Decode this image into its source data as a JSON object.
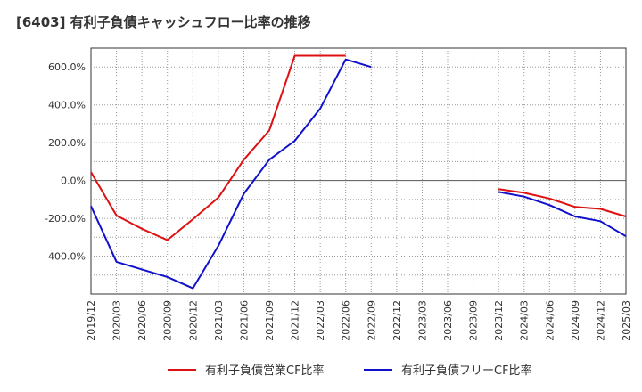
{
  "chart_data": {
    "type": "line",
    "title": "[6403]  有利子負債キャッシュフロー比率の推移",
    "xlabel": "",
    "ylabel": "",
    "ylim": [
      -600,
      700
    ],
    "y_ticks": [
      {
        "value": 600,
        "label": "600.0%"
      },
      {
        "value": 400,
        "label": "400.0%"
      },
      {
        "value": 200,
        "label": "200.0%"
      },
      {
        "value": 0,
        "label": "0.0%"
      },
      {
        "value": -200,
        "label": "-200.0%"
      },
      {
        "value": -400,
        "label": "-400.0%"
      }
    ],
    "categories": [
      "2019/12",
      "2020/03",
      "2020/06",
      "2020/09",
      "2020/12",
      "2021/03",
      "2021/06",
      "2021/09",
      "2021/12",
      "2022/03",
      "2022/06",
      "2022/09",
      "2022/12",
      "2023/03",
      "2023/06",
      "2023/09",
      "2023/12",
      "2024/03",
      "2024/06",
      "2024/09",
      "2024/12",
      "2025/03"
    ],
    "grid": true,
    "legend_position": "bottom",
    "series": [
      {
        "name": "有利子負債営業CF比率",
        "color": "#dd1111",
        "segments": [
          [
            [
              0,
              45
            ],
            [
              3,
              -185
            ],
            [
              6,
              -255
            ],
            [
              9,
              -315
            ],
            [
              12,
              -205
            ],
            [
              15,
              -90
            ],
            [
              18,
              110
            ],
            [
              21,
              265
            ],
            [
              24,
              660
            ],
            [
              27,
              660
            ],
            [
              30,
              660
            ]
          ],
          [
            [
              48,
              -45
            ],
            [
              51,
              -65
            ],
            [
              54,
              -95
            ],
            [
              57,
              -140
            ],
            [
              60,
              -150
            ],
            [
              63,
              -190
            ]
          ]
        ]
      },
      {
        "name": "有利子負債フリーCF比率",
        "color": "#1111cc",
        "segments": [
          [
            [
              0,
              -135
            ],
            [
              3,
              -430
            ],
            [
              6,
              -470
            ],
            [
              9,
              -510
            ],
            [
              12,
              -570
            ],
            [
              15,
              -345
            ],
            [
              18,
              -70
            ],
            [
              21,
              110
            ],
            [
              24,
              210
            ],
            [
              27,
              380
            ],
            [
              30,
              640
            ],
            [
              33,
              600
            ]
          ],
          [
            [
              48,
              -60
            ],
            [
              51,
              -85
            ],
            [
              54,
              -130
            ],
            [
              57,
              -190
            ],
            [
              60,
              -215
            ],
            [
              63,
              -295
            ]
          ]
        ]
      }
    ]
  }
}
